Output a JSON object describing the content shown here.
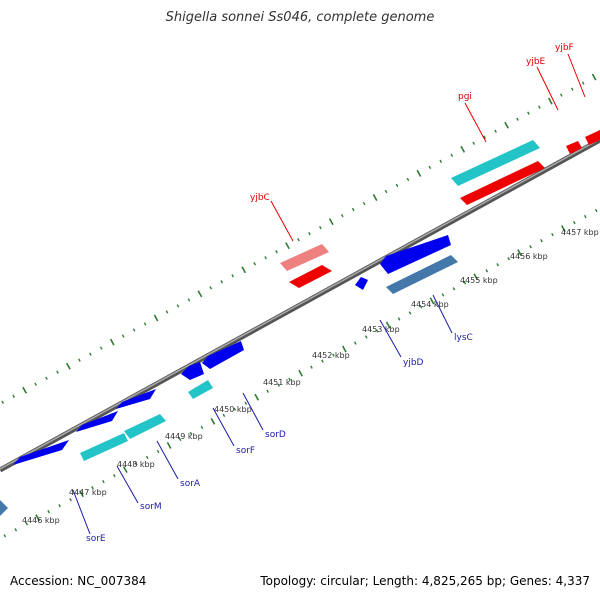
{
  "title": "Shigella sonnei Ss046, complete genome",
  "footer": {
    "accession_label": "Accession:",
    "accession": "NC_007384",
    "topology_label": "Topology:",
    "topology": "circular",
    "length_label": "Length:",
    "length": "4,825,265 bp",
    "genes_label": "Genes:",
    "genes": "4,337"
  },
  "colors": {
    "backbone": "#888888",
    "tick": "#2e7d32",
    "forward_gene": "#ee0000",
    "forward_gene_light": "#ee8080",
    "reverse_gene": "#0000ee",
    "reverse_gene_steel": "#4477aa",
    "cyan_gene": "#22c4c8",
    "forward_label": "#dd0000",
    "reverse_label": "#1a1aaa"
  },
  "scale": {
    "labels": [
      "4446 kbp",
      "4447 kbp",
      "4448 kbp",
      "4449 kbp",
      "4450 kbp",
      "4451 kbp",
      "4452 kbp",
      "4453 kbp",
      "4454 kbp",
      "4455 kbp",
      "4456 kbp",
      "4457 kbp"
    ]
  },
  "forward_genes": [
    {
      "name": "yjbC"
    },
    {
      "name": "pgi"
    },
    {
      "name": "yjbE"
    },
    {
      "name": "yjbF"
    }
  ],
  "reverse_genes": [
    {
      "name": "sorE"
    },
    {
      "name": "sorM"
    },
    {
      "name": "sorA"
    },
    {
      "name": "sorF"
    },
    {
      "name": "sorD"
    },
    {
      "name": "yjbD"
    },
    {
      "name": "lysC"
    }
  ]
}
